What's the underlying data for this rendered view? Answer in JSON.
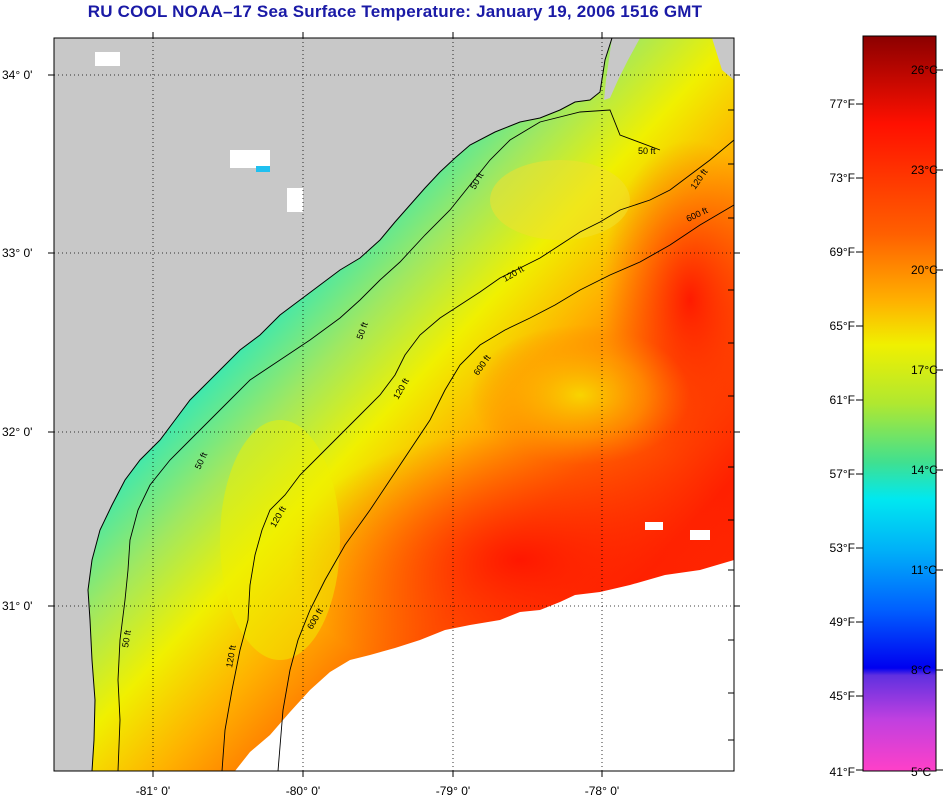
{
  "title": "RU COOL  NOAA–17  Sea Surface Temperature:  January 19, 2006 1516 GMT",
  "map": {
    "latitude_labels": [
      "34° 0'",
      "33° 0'",
      "32° 0'",
      "31° 0'"
    ],
    "longitude_labels": [
      "-81° 0'",
      "-80° 0'",
      "-79° 0'",
      "-78° 0'"
    ],
    "contour_labels": [
      "50 ft",
      "50 ft",
      "50 ft",
      "50 ft",
      "50 ft",
      "120 ft",
      "120 ft",
      "120 ft",
      "120 ft",
      "120 ft",
      "600 ft",
      "600 ft",
      "600 ft"
    ],
    "colors": {
      "land": "#c8c8c8",
      "cloud": "#ffffff",
      "coastline": "#000000",
      "grid": "#000000"
    }
  },
  "colorbar": {
    "celsius_labels": [
      "26°C",
      "23°C",
      "20°C",
      "17°C",
      "14°C",
      "11°C",
      "8°C",
      "5°C"
    ],
    "fahrenheit_labels": [
      "77°F",
      "73°F",
      "69°F",
      "65°F",
      "61°F",
      "57°F",
      "53°F",
      "49°F",
      "45°F",
      "41°F"
    ],
    "colors": {
      "top": "#8b0000",
      "red": "#ff1a00",
      "orange": "#ff8000",
      "yellow": "#f5ee00",
      "green": "#80e060",
      "cyan": "#00e8f0",
      "blue": "#0040ff",
      "purple": "#9030e0",
      "magenta": "#ff40c8"
    }
  }
}
